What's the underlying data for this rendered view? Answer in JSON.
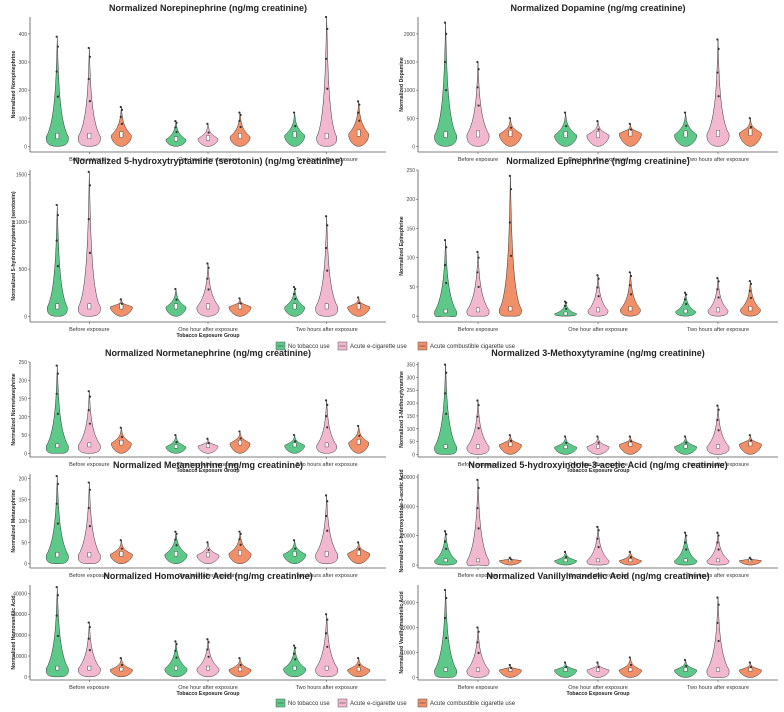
{
  "colors": {
    "none": "#5cc989",
    "ecig": "#f2b8cf",
    "comb": "#f08f68",
    "stroke": "#333333",
    "axis": "#555555"
  },
  "legend": {
    "items": [
      {
        "key": "none",
        "label": "No tobacco use"
      },
      {
        "key": "ecig",
        "label": "Acute e-cigarette use"
      },
      {
        "key": "comb",
        "label": "Acute combustible cigarette use"
      }
    ]
  },
  "chart_data": [
    {
      "type": "violin",
      "title": "Normalized Norepinephrine (ng/mg creatinine)",
      "ylabel": "Normalized Norepinephrine",
      "xlabel": "",
      "ylim": [
        -20,
        460
      ],
      "yticks": [
        0,
        100,
        200,
        300,
        400
      ],
      "categories": [
        "Before exposure",
        "One hour after exposure",
        "Two hours after exposure"
      ],
      "series": [
        {
          "name": "No tobacco use",
          "median": [
            35,
            25,
            40
          ],
          "max": [
            390,
            90,
            120
          ],
          "width": [
            1.0,
            0.9,
            0.9
          ]
        },
        {
          "name": "Acute e-cigarette use",
          "median": [
            35,
            28,
            35
          ],
          "max": [
            350,
            80,
            460
          ],
          "width": [
            1.0,
            0.9,
            0.9
          ]
        },
        {
          "name": "Acute combustible cigarette use",
          "median": [
            40,
            35,
            45
          ],
          "max": [
            140,
            120,
            160
          ],
          "width": [
            0.9,
            0.9,
            0.9
          ]
        }
      ]
    },
    {
      "type": "violin",
      "title": "Normalized Dopamine (ng/mg creatinine)",
      "ylabel": "Normalized Dopamine",
      "xlabel": "",
      "ylim": [
        -100,
        2300
      ],
      "yticks": [
        0,
        500,
        1000,
        1500,
        2000
      ],
      "categories": [
        "Before exposure",
        "One hour after exposure",
        "Two hours after exposure"
      ],
      "series": [
        {
          "name": "No tobacco use",
          "median": [
            200,
            200,
            210
          ],
          "max": [
            2200,
            600,
            600
          ],
          "width": [
            1.0,
            1.0,
            1.0
          ]
        },
        {
          "name": "Acute e-cigarette use",
          "median": [
            210,
            200,
            220
          ],
          "max": [
            1500,
            450,
            1900
          ],
          "width": [
            1.0,
            1.0,
            1.0
          ]
        },
        {
          "name": "Acute combustible cigarette use",
          "median": [
            220,
            230,
            240
          ],
          "max": [
            500,
            400,
            500
          ],
          "width": [
            1.0,
            1.0,
            1.0
          ]
        }
      ]
    },
    {
      "type": "violin",
      "title": "Normalized 5-hydroxytryptamine (serotonin) (ng/mg creatinine)",
      "ylabel": "Normalized 5-hydroxytryptamine (serotonin)",
      "xlabel": "Tobacco Exposure Group",
      "ylim": [
        -60,
        1550
      ],
      "yticks": [
        0,
        500,
        1000,
        1500
      ],
      "categories": [
        "Before exposure",
        "One hour after exposure",
        "Two hours after exposure"
      ],
      "series": [
        {
          "name": "No tobacco use",
          "median": [
            100,
            100,
            100
          ],
          "max": [
            1180,
            290,
            310
          ],
          "width": [
            0.9,
            0.9,
            0.9
          ]
        },
        {
          "name": "Acute e-cigarette use",
          "median": [
            100,
            100,
            100
          ],
          "max": [
            1530,
            560,
            1060
          ],
          "width": [
            1.0,
            1.0,
            1.0
          ]
        },
        {
          "name": "Acute combustible cigarette use",
          "median": [
            100,
            100,
            100
          ],
          "max": [
            180,
            190,
            200
          ],
          "width": [
            1.0,
            1.0,
            1.0
          ]
        }
      ]
    },
    {
      "type": "violin",
      "title": "Normalized Epinephrine (ng/mg creatinine)",
      "ylabel": "Normalized Epinephrine",
      "xlabel": "",
      "ylim": [
        -10,
        250
      ],
      "yticks": [
        0,
        50,
        100,
        150,
        200,
        250
      ],
      "categories": [
        "Before exposure",
        "One hour after exposure",
        "Two hours after exposure"
      ],
      "series": [
        {
          "name": "No tobacco use",
          "median": [
            8,
            4,
            8
          ],
          "max": [
            130,
            25,
            40
          ],
          "width": [
            1.0,
            1.0,
            0.9
          ]
        },
        {
          "name": "Acute e-cigarette use",
          "median": [
            10,
            10,
            10
          ],
          "max": [
            110,
            70,
            65
          ],
          "width": [
            1.0,
            0.9,
            0.9
          ]
        },
        {
          "name": "Acute combustible cigarette use",
          "median": [
            12,
            12,
            12
          ],
          "max": [
            240,
            75,
            60
          ],
          "width": [
            1.0,
            0.9,
            0.9
          ]
        }
      ]
    },
    {
      "type": "violin",
      "title": "Normalized Normetanephrine (ng/mg creatinine)",
      "ylabel": "Normalized Normetanephrine",
      "xlabel": "Tobacco Exposure Group",
      "ylim": [
        -10,
        250
      ],
      "yticks": [
        0,
        50,
        100,
        150,
        200,
        250
      ],
      "categories": [
        "Before exposure",
        "One hour after exposure",
        "Two hours after exposure"
      ],
      "series": [
        {
          "name": "No tobacco use",
          "median": [
            20,
            18,
            22
          ],
          "max": [
            240,
            50,
            50
          ],
          "width": [
            1.0,
            0.9,
            0.9
          ]
        },
        {
          "name": "Acute e-cigarette use",
          "median": [
            22,
            20,
            22
          ],
          "max": [
            170,
            40,
            145
          ],
          "width": [
            1.0,
            0.9,
            0.9
          ]
        },
        {
          "name": "Acute combustible cigarette use",
          "median": [
            28,
            28,
            30
          ],
          "max": [
            70,
            60,
            75
          ],
          "width": [
            0.9,
            0.9,
            0.9
          ]
        }
      ]
    },
    {
      "type": "violin",
      "title": "Normalized 3-Methoxytyramine (ng/mg creatinine)",
      "ylabel": "Normalized 3-Methoxytyramine",
      "xlabel": "Tobacco Exposure Group",
      "ylim": [
        -10,
        360
      ],
      "yticks": [
        0,
        50,
        100,
        150,
        200,
        250,
        300,
        350
      ],
      "categories": [
        "Before exposure",
        "One hour after exposure",
        "Two hours after exposure"
      ],
      "series": [
        {
          "name": "No tobacco use",
          "median": [
            30,
            28,
            30
          ],
          "max": [
            350,
            70,
            70
          ],
          "width": [
            1.0,
            1.0,
            1.0
          ]
        },
        {
          "name": "Acute e-cigarette use",
          "median": [
            30,
            30,
            30
          ],
          "max": [
            210,
            70,
            190
          ],
          "width": [
            1.0,
            1.0,
            1.0
          ]
        },
        {
          "name": "Acute combustible cigarette use",
          "median": [
            38,
            38,
            40
          ],
          "max": [
            75,
            70,
            75
          ],
          "width": [
            1.0,
            1.0,
            1.0
          ]
        }
      ]
    },
    {
      "type": "violin",
      "title": "Normalized Metanephrine (ng/mg creatinine)",
      "ylabel": "Normalized Metanephrine",
      "xlabel": "",
      "ylim": [
        -10,
        210
      ],
      "yticks": [
        0,
        50,
        100,
        150,
        200
      ],
      "categories": [
        "Before exposure",
        "One hour after exposure",
        "Two hours after exposure"
      ],
      "series": [
        {
          "name": "No tobacco use",
          "median": [
            20,
            22,
            22
          ],
          "max": [
            205,
            75,
            55
          ],
          "width": [
            1.0,
            1.0,
            1.0
          ]
        },
        {
          "name": "Acute e-cigarette use",
          "median": [
            20,
            20,
            22
          ],
          "max": [
            190,
            50,
            160
          ],
          "width": [
            1.0,
            1.0,
            1.0
          ]
        },
        {
          "name": "Acute combustible cigarette use",
          "median": [
            22,
            24,
            24
          ],
          "max": [
            55,
            75,
            50
          ],
          "width": [
            1.0,
            1.0,
            1.0
          ]
        }
      ]
    },
    {
      "type": "violin",
      "title": "Normalized 5-hydroxyindole-3-acetic Acid (ng/mg creatinine)",
      "ylabel": "Normalized 5-hydroxyindole-3-acetic Acid",
      "xlabel": "",
      "ylim": [
        -2000,
        62000
      ],
      "yticks": [
        0,
        20000,
        40000,
        60000
      ],
      "categories": [
        "Before exposure",
        "One hour after exposure",
        "Two hours after exposure"
      ],
      "series": [
        {
          "name": "No tobacco use",
          "median": [
            3000,
            3000,
            3000
          ],
          "max": [
            23000,
            9000,
            22000
          ],
          "width": [
            1.0,
            1.0,
            1.0
          ]
        },
        {
          "name": "Acute e-cigarette use",
          "median": [
            3000,
            3000,
            3000
          ],
          "max": [
            58000,
            26000,
            22000
          ],
          "width": [
            1.0,
            1.0,
            1.0
          ]
        },
        {
          "name": "Acute combustible cigarette use",
          "median": [
            3000,
            3000,
            3000
          ],
          "max": [
            5000,
            9000,
            5000
          ],
          "width": [
            1.0,
            1.0,
            1.0
          ]
        }
      ]
    },
    {
      "type": "violin",
      "title": "Normalized Homovanillic Acid (ng/mg creatinine)",
      "ylabel": "Normalized Homovanillic Acid",
      "xlabel": "Tobacco Exposure Group",
      "ylim": [
        -1500,
        44000
      ],
      "yticks": [
        0,
        10000,
        20000,
        30000,
        40000
      ],
      "categories": [
        "Before exposure",
        "One hour after exposure",
        "Two hours after exposure"
      ],
      "series": [
        {
          "name": "No tobacco use",
          "median": [
            4000,
            4000,
            4000
          ],
          "max": [
            43000,
            17000,
            15000
          ],
          "width": [
            1.0,
            1.0,
            1.0
          ]
        },
        {
          "name": "Acute e-cigarette use",
          "median": [
            4000,
            4000,
            4000
          ],
          "max": [
            26000,
            18000,
            30000
          ],
          "width": [
            1.0,
            1.0,
            1.0
          ]
        },
        {
          "name": "Acute combustible cigarette use",
          "median": [
            3500,
            3500,
            3500
          ],
          "max": [
            9000,
            9000,
            9000
          ],
          "width": [
            1.0,
            1.0,
            1.0
          ]
        }
      ]
    },
    {
      "type": "violin",
      "title": "Normalized Vanillylmandelic Acid (ng/mg creatinine)",
      "ylabel": "Normalized Vanillylmandelic Acid",
      "xlabel": "Tobacco Exposure Group",
      "ylim": [
        -1000,
        37000
      ],
      "yticks": [
        0,
        10000,
        20000,
        30000
      ],
      "categories": [
        "Before exposure",
        "One hour after exposure",
        "Two hours after exposure"
      ],
      "series": [
        {
          "name": "No tobacco use",
          "median": [
            3000,
            3000,
            3000
          ],
          "max": [
            35000,
            6000,
            7000
          ],
          "width": [
            1.0,
            1.0,
            1.0
          ]
        },
        {
          "name": "Acute e-cigarette use",
          "median": [
            3000,
            3000,
            3000
          ],
          "max": [
            20000,
            6000,
            32000
          ],
          "width": [
            1.0,
            1.0,
            1.0
          ]
        },
        {
          "name": "Acute combustible cigarette use",
          "median": [
            3000,
            3000,
            3000
          ],
          "max": [
            5000,
            8000,
            6000
          ],
          "width": [
            1.0,
            1.0,
            1.0
          ]
        }
      ]
    }
  ]
}
